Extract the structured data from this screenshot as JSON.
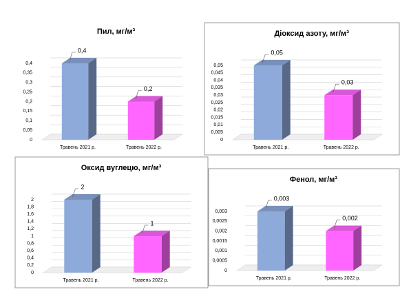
{
  "chart_data": [
    {
      "type": "bar",
      "title": "Пил, мг/м³",
      "categories": [
        "Травень 2021 р.",
        "Травень 2022 р."
      ],
      "values": [
        0.4,
        0.2
      ],
      "value_labels": [
        "0,4",
        "0,2"
      ],
      "colors": [
        "#8eaadb",
        "#ff66ff"
      ],
      "ylim": [
        0,
        0.4
      ],
      "yticks": [
        0,
        {
          "value": 0.05,
          "label": "0,05"
        },
        {
          "value": 0.1,
          "label": "0,1"
        },
        {
          "value": 0.15,
          "label": "0,15"
        },
        {
          "value": 0.2,
          "label": "0,2"
        },
        {
          "value": 0.25,
          "label": "0,25"
        },
        {
          "value": 0.3,
          "label": "0,3"
        },
        {
          "value": 0.35,
          "label": "0,35"
        },
        {
          "value": 0.4,
          "label": "0,4"
        }
      ],
      "grid": true
    },
    {
      "type": "bar",
      "title": "Діоксид азоту, мг/м³",
      "categories": [
        "Травень 2021 р.",
        "Травень 2022 р."
      ],
      "values": [
        0.05,
        0.03
      ],
      "value_labels": [
        "0,05",
        "0,03"
      ],
      "colors": [
        "#8eaadb",
        "#ff66ff"
      ],
      "ylim": [
        0,
        0.05
      ],
      "yticks": [
        0,
        {
          "value": 0.005,
          "label": "0,005"
        },
        {
          "value": 0.01,
          "label": "0,01"
        },
        {
          "value": 0.015,
          "label": "0,015"
        },
        {
          "value": 0.02,
          "label": "0,02"
        },
        {
          "value": 0.025,
          "label": "0,025"
        },
        {
          "value": 0.03,
          "label": "0,03"
        },
        {
          "value": 0.035,
          "label": "0,035"
        },
        {
          "value": 0.04,
          "label": "0,04"
        },
        {
          "value": 0.045,
          "label": "0,045"
        },
        {
          "value": 0.05,
          "label": "0,05"
        }
      ],
      "grid": true
    },
    {
      "type": "bar",
      "title": "Оксид вуглецю, мг/м³",
      "categories": [
        "Травень 2021 р.",
        "Травень 2022 р."
      ],
      "values": [
        2,
        1
      ],
      "colors": [
        "#8eaadb",
        "#ff66ff"
      ],
      "ylim": [
        0,
        2
      ],
      "yticks": [
        0,
        {
          "value": 0.2,
          "label": "0,2"
        },
        {
          "value": 0.4,
          "label": "0,4"
        },
        {
          "value": 0.6,
          "label": "0,6"
        },
        {
          "value": 0.8,
          "label": "0,8"
        },
        1,
        {
          "value": 1.2,
          "label": "1,2"
        },
        {
          "value": 1.4,
          "label": "1,4"
        },
        {
          "value": 1.6,
          "label": "1,6"
        },
        {
          "value": 1.8,
          "label": "1,8"
        },
        2
      ],
      "grid": true
    },
    {
      "type": "bar",
      "title": "Фенол, мг/м³",
      "categories": [
        "Травень 2021 р.",
        "Травень 2022 р."
      ],
      "values": [
        0.003,
        0.002
      ],
      "value_labels": [
        "0,003",
        "0,002"
      ],
      "colors": [
        "#8eaadb",
        "#ff66ff"
      ],
      "ylim": [
        0,
        0.003
      ],
      "yticks": [
        0,
        {
          "value": 0.0005,
          "label": "0,0005"
        },
        {
          "value": 0.001,
          "label": "0,001"
        },
        {
          "value": 0.0015,
          "label": "0,0015"
        },
        {
          "value": 0.002,
          "label": "0,002"
        },
        {
          "value": 0.0025,
          "label": "0,0025"
        },
        {
          "value": 0.003,
          "label": "0,003"
        }
      ],
      "grid": true
    }
  ]
}
